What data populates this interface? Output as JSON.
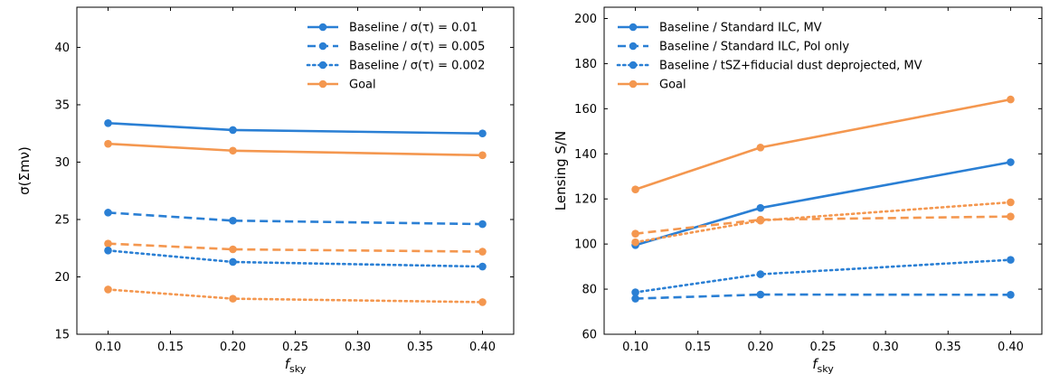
{
  "chart_data": [
    {
      "type": "line",
      "title": "",
      "xlabel": "f_sky",
      "xlabel_main": "f",
      "xlabel_sub": "sky",
      "ylabel": "σ(Σmν)",
      "xlim": [
        0.075,
        0.425
      ],
      "ylim": [
        15,
        43.5
      ],
      "xticks": [
        "0.10",
        "0.15",
        "0.20",
        "0.25",
        "0.30",
        "0.35",
        "0.40"
      ],
      "yticks": [
        "15",
        "20",
        "25",
        "30",
        "35",
        "40"
      ],
      "legend_position": "top-right",
      "x": [
        0.1,
        0.2,
        0.4
      ],
      "series": [
        {
          "name": "Baseline / σ(τ) = 0.01",
          "style": "solid",
          "color": "#2a7fd4",
          "values": [
            33.4,
            32.8,
            32.5
          ]
        },
        {
          "name": "Goal",
          "style": "solid",
          "color": "#f4974f",
          "values": [
            31.6,
            31.0,
            30.6
          ]
        },
        {
          "name": "Baseline / σ(τ) = 0.005",
          "style": "dashed",
          "color": "#2a7fd4",
          "values": [
            25.6,
            24.9,
            24.6
          ]
        },
        {
          "name": "",
          "style": "dashed",
          "color": "#f4974f",
          "values": [
            22.9,
            22.4,
            22.2
          ]
        },
        {
          "name": "Baseline / σ(τ) = 0.002",
          "style": "dotted",
          "color": "#2a7fd4",
          "values": [
            22.3,
            21.3,
            20.9
          ]
        },
        {
          "name": "",
          "style": "dotted",
          "color": "#f4974f",
          "values": [
            18.9,
            18.1,
            17.8
          ]
        }
      ],
      "legend": [
        {
          "label": "Baseline / σ(τ) = 0.01",
          "style": "solid",
          "color": "#2a7fd4"
        },
        {
          "label": "Baseline / σ(τ) = 0.005",
          "style": "dashed",
          "color": "#2a7fd4"
        },
        {
          "label": "Baseline / σ(τ) = 0.002",
          "style": "dotted",
          "color": "#2a7fd4"
        },
        {
          "label": "Goal",
          "style": "solid",
          "color": "#f4974f"
        }
      ]
    },
    {
      "type": "line",
      "title": "",
      "xlabel": "f_sky",
      "xlabel_main": "f",
      "xlabel_sub": "sky",
      "ylabel": "Lensing S/N",
      "xlim": [
        0.075,
        0.425
      ],
      "ylim": [
        60,
        205
      ],
      "xticks": [
        "0.10",
        "0.15",
        "0.20",
        "0.25",
        "0.30",
        "0.35",
        "0.40"
      ],
      "yticks": [
        "60",
        "80",
        "100",
        "120",
        "140",
        "160",
        "180",
        "200"
      ],
      "legend_position": "top-left",
      "x": [
        0.1,
        0.2,
        0.4
      ],
      "series": [
        {
          "name": "Goal",
          "style": "solid",
          "color": "#f4974f",
          "values": [
            124.2,
            142.8,
            164.1
          ]
        },
        {
          "name": "Baseline / Standard ILC, MV",
          "style": "solid",
          "color": "#2a7fd4",
          "values": [
            99.5,
            116.0,
            136.3
          ]
        },
        {
          "name": "",
          "style": "dashed",
          "color": "#f4974f",
          "values": [
            104.6,
            110.8,
            112.2
          ]
        },
        {
          "name": "",
          "style": "dotted",
          "color": "#f4974f",
          "values": [
            100.8,
            110.4,
            118.5
          ]
        },
        {
          "name": "Baseline / tSZ+fiducial dust deprojected, MV",
          "style": "dotted",
          "color": "#2a7fd4",
          "values": [
            78.6,
            86.6,
            93.0
          ]
        },
        {
          "name": "Baseline / Standard ILC, Pol only",
          "style": "dashed",
          "color": "#2a7fd4",
          "values": [
            75.8,
            77.6,
            77.5
          ]
        }
      ],
      "legend": [
        {
          "label": "Baseline / Standard ILC, MV",
          "style": "solid",
          "color": "#2a7fd4"
        },
        {
          "label": "Baseline / Standard ILC, Pol only",
          "style": "dashed",
          "color": "#2a7fd4"
        },
        {
          "label": "Baseline / tSZ+fiducial dust deprojected, MV",
          "style": "dotted",
          "color": "#2a7fd4"
        },
        {
          "label": "Goal",
          "style": "solid",
          "color": "#f4974f"
        }
      ]
    }
  ]
}
